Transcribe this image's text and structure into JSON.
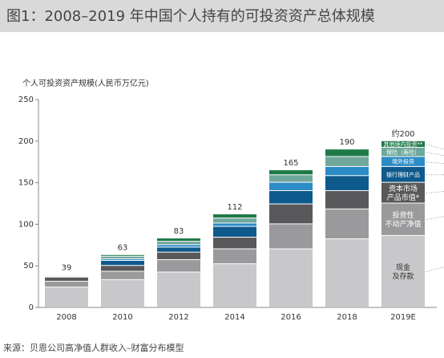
{
  "chart_data": {
    "type": "stacked_bar",
    "title": "图1：2008–2019 年中国个人持有的可投资资产总体规模",
    "y_label": "个人可投资资产规模(人民币万亿元)",
    "source": "来源：贝恩公司高净值人群收入–财富分布模型",
    "categories": [
      "2008",
      "2010",
      "2012",
      "2014",
      "2016",
      "2018",
      "2019E"
    ],
    "series": [
      {
        "name": "现金\n及存款",
        "color": "#c8c8ca",
        "values": [
          24,
          33,
          42,
          52,
          70,
          82,
          86
        ]
      },
      {
        "name": "投资性\n不动产净值",
        "color": "#9a9a9c",
        "values": [
          7,
          10,
          15,
          18,
          30,
          36,
          39
        ]
      },
      {
        "name": "资本市场\n产品市值*",
        "color": "#59595b",
        "values": [
          5,
          7,
          9,
          14,
          24,
          22,
          25
        ]
      },
      {
        "name": "银行理财产品",
        "color": "#0f5a8c",
        "values": [
          1,
          6,
          6,
          13,
          16,
          18,
          19
        ]
      },
      {
        "name": "境外投资",
        "color": "#2c8cc6",
        "values": [
          1,
          2,
          3,
          4,
          10,
          11,
          12
        ]
      },
      {
        "name": "保险（寿险）",
        "color": "#6fa79b",
        "values": [
          1,
          3,
          4,
          6,
          9,
          12,
          11
        ]
      },
      {
        "name": "其他境内投资**",
        "color": "#1e7a48",
        "values": [
          0,
          2,
          4,
          5,
          6,
          9,
          8
        ]
      }
    ],
    "totals": [
      39,
      63,
      83,
      112,
      165,
      190,
      200
    ],
    "total_labels": [
      "39",
      "63",
      "83",
      "112",
      "165",
      "190",
      "约200"
    ],
    "ylim": [
      0,
      250
    ],
    "yticks": [
      0,
      50,
      100,
      150,
      200,
      250
    ]
  }
}
